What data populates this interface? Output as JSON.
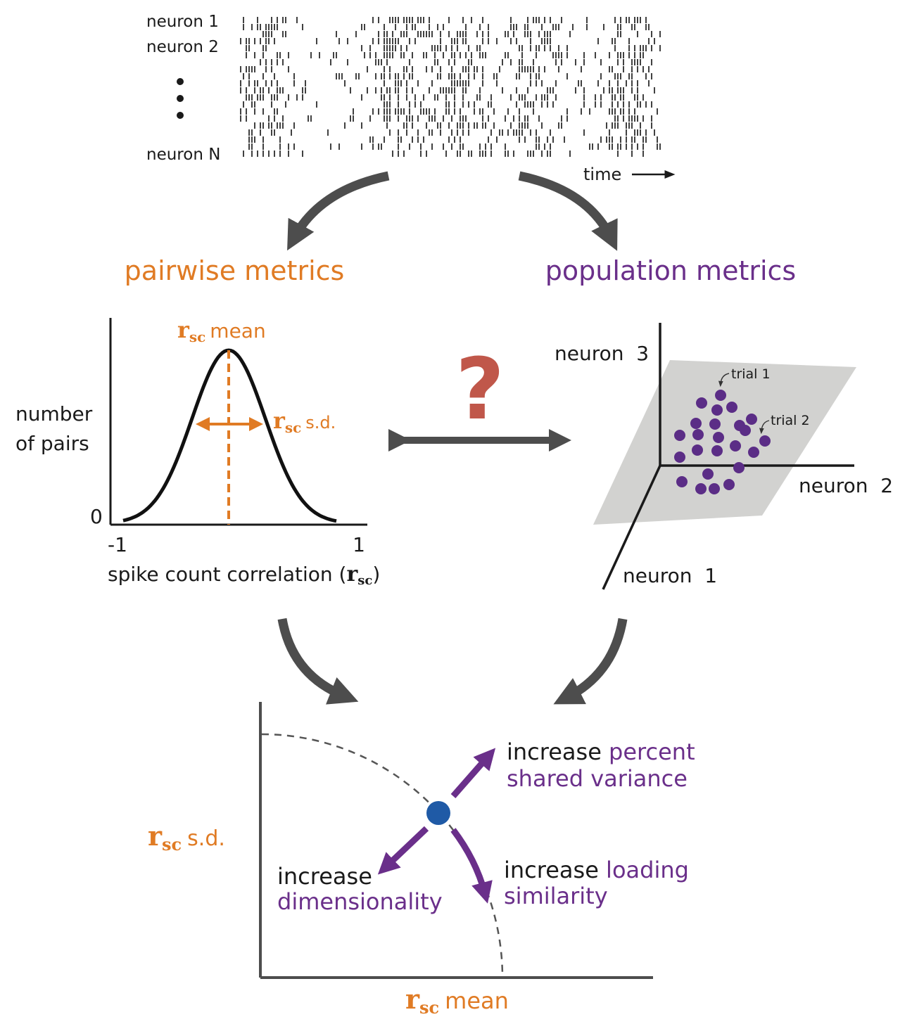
{
  "colors": {
    "orange": "#e07b24",
    "purple": "#6a2f8a",
    "arrow_gray": "#4d4d4d",
    "question_red": "#c0574a",
    "dot_purple": "#5b2d86",
    "plane_gray": "#d2d2d0",
    "point_blue": "#1f5aa6"
  },
  "raster": {
    "row_labels": [
      "neuron 1",
      "neuron 2",
      "neuron N"
    ],
    "time_label": "time"
  },
  "headings": {
    "pairwise": "pairwise metrics",
    "population": "population metrics"
  },
  "question_mark": "?",
  "histogram": {
    "mean_sym": "r",
    "mean_sub": "sc",
    "mean_word": "mean",
    "sd_sym": "r",
    "sd_sub": "sc",
    "sd_word": "s.d.",
    "ylabel_line1": "number",
    "ylabel_line2": "of pairs",
    "y_zero": "0",
    "x_min": "-1",
    "x_max": "1",
    "xlabel_text": "spike count correlation (",
    "xlabel_sym": "r",
    "xlabel_sub": "sc",
    "xlabel_close": ")"
  },
  "space3d": {
    "axis3": "neuron  3",
    "axis2": "neuron  2",
    "axis1": "neuron  1",
    "trial1": "trial 1",
    "trial2": "trial 2"
  },
  "summary": {
    "ylabel_sym": "r",
    "ylabel_sub": "sc",
    "ylabel_word": "s.d.",
    "xlabel_sym": "r",
    "xlabel_sub": "sc",
    "xlabel_word": "mean",
    "psv_line1_black": "increase ",
    "psv_line1_purple": "percent",
    "psv_line2_purple": "shared variance",
    "dim_line1_black": "increase",
    "dim_line2_purple": "dimensionality",
    "ls_line1_black": "increase ",
    "ls_line1_purple": "loading",
    "ls_line2_purple": "similarity"
  }
}
